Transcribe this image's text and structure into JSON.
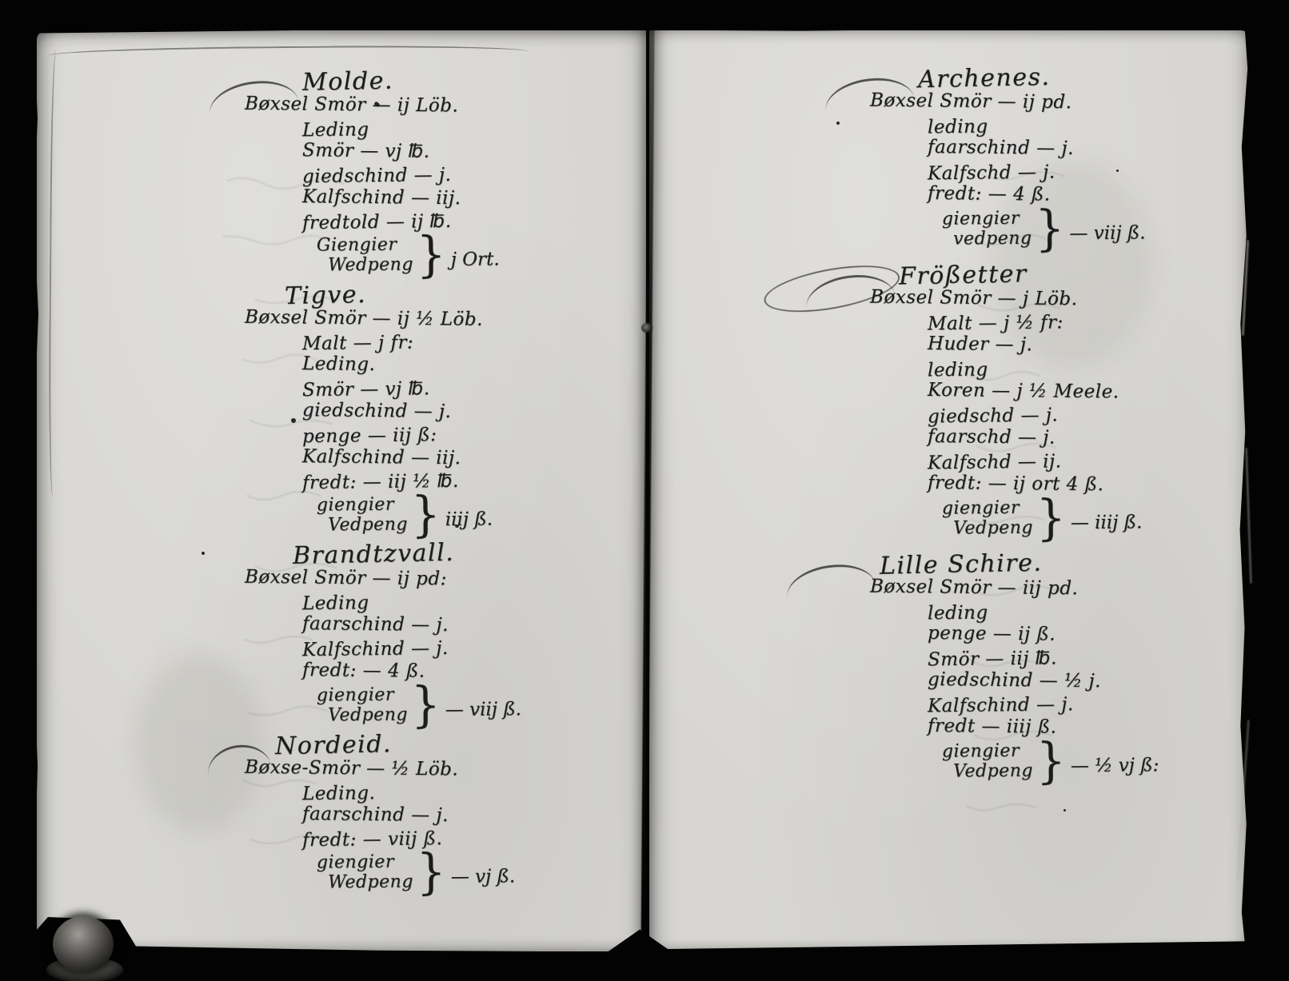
{
  "document_kind": "handwritten ledger spread",
  "colors": {
    "paper": "#d7d6d2",
    "ink": "#1b1b1d",
    "background": "#040404"
  },
  "pages": {
    "left": {
      "sections": [
        {
          "id": "molde",
          "heading": "Molde.",
          "lines": [
            "Bøxsel Smör — ij Löb.",
            "Leding",
            "Smör — vj ℔.",
            "giedschind — j.",
            "Kalfschind — iij.",
            "fredtold — ij ℔.",
            {
              "brace": {
                "top": "Giengier",
                "bottom": "Wedpeng",
                "value": "j Ort."
              }
            }
          ]
        },
        {
          "id": "tigve",
          "heading": "Tigve.",
          "lines": [
            "Bøxsel Smör — ij ½ Löb.",
            "Malt — j fr:",
            "Leding.",
            "Smör — vj ℔.",
            "giedschind — j.",
            "penge — iij ß:",
            "Kalfschind — iij.",
            "fredt: — iij ½ ℔.",
            {
              "brace": {
                "top": "giengier",
                "bottom": "Vedpeng",
                "value": "iiij ß."
              }
            }
          ]
        },
        {
          "id": "brandtzvall",
          "heading": "Brandtzvall.",
          "lines": [
            "Bøxsel Smör — ij pd:",
            "Leding",
            "faarschind — j.",
            "Kalfschind — j.",
            "fredt: — 4 ß.",
            {
              "brace": {
                "top": "giengier",
                "bottom": "Vedpeng",
                "value": "— viij ß."
              }
            }
          ]
        },
        {
          "id": "nordeid",
          "heading": "Nordeid.",
          "lines": [
            "Bøxse-Smör — ½ Löb.",
            "Leding.",
            "faarschind — j.",
            "fredt: — viij ß.",
            {
              "brace": {
                "top": "giengier",
                "bottom": "Wedpeng",
                "value": "— vj ß."
              }
            }
          ]
        }
      ]
    },
    "right": {
      "sections": [
        {
          "id": "archenes",
          "heading": "Archenes.",
          "lines": [
            "Bøxsel Smör — ij pd.",
            "leding",
            "faarschind — j.",
            "Kalfschd — j.",
            "fredt: — 4 ß.",
            {
              "brace": {
                "top": "giengier",
                "bottom": "vedpeng",
                "value": "— viij ß."
              }
            }
          ]
        },
        {
          "id": "frossetter",
          "heading": "Frößetter",
          "lines": [
            "Bøxsel Smör — j Löb.",
            "Malt — j ½ fr:",
            "Huder — j.",
            "leding",
            "Koren — j ½ Meele.",
            "giedschd — j.",
            "faarschd — j.",
            "Kalfschd — ij.",
            "fredt: — ij ort 4 ß.",
            {
              "brace": {
                "top": "giengier",
                "bottom": "Vedpeng",
                "value": "— iiij ß."
              }
            }
          ]
        },
        {
          "id": "lilleschire",
          "heading": "Lille Schire.",
          "lines": [
            "Bøxsel Smör — iij pd.",
            "leding",
            "penge — ij ß.",
            "Smör — iij ℔.",
            "giedschind — ½ j.",
            "Kalfschind — j.",
            "fredt — iiij ß.",
            {
              "brace": {
                "top": "giengier",
                "bottom": "Vedpeng",
                "value": "— ½ vj ß:"
              }
            }
          ]
        }
      ]
    }
  }
}
